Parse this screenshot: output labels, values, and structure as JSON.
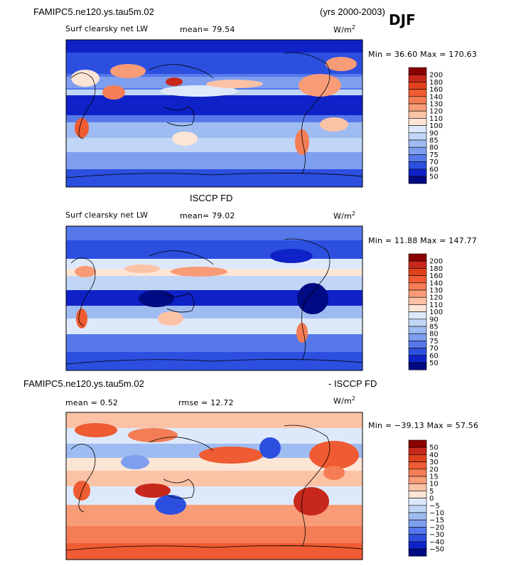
{
  "header": {
    "case_name": "FAMIPC5.ne120.ys.tau5m.02",
    "years": "(yrs 2000-2003)",
    "season": "DJF"
  },
  "units_superscript": "2",
  "panels": [
    {
      "field": "Surf clearsky net LW",
      "stat_line": "mean=  79.54",
      "units": "W/m",
      "minmax": "Min =  36.60 Max = 170.63",
      "colorbar_labels": [
        "200",
        "180",
        "160",
        "140",
        "130",
        "120",
        "110",
        "100",
        "90",
        "85",
        "80",
        "75",
        "70",
        "60",
        "50"
      ]
    },
    {
      "title": "ISCCP FD",
      "field": "Surf clearsky net LW",
      "stat_line": "mean=  79.02",
      "units": "W/m",
      "minmax": "Min =  11.88 Max = 147.77",
      "colorbar_labels": [
        "200",
        "180",
        "160",
        "140",
        "130",
        "120",
        "110",
        "100",
        "90",
        "85",
        "80",
        "75",
        "70",
        "60",
        "50"
      ]
    },
    {
      "title_left": "FAMIPC5.ne120.ys.tau5m.02",
      "title_right": "- ISCCP FD",
      "stat_mean": "mean =   0.52",
      "stat_rmse": "rmse =  12.72",
      "units": "W/m",
      "minmax": "Min = −39.13 Max =  57.56",
      "colorbar_labels": [
        "50",
        "40",
        "30",
        "20",
        "15",
        "10",
        "5",
        "0",
        "−5",
        "−10",
        "−15",
        "−20",
        "−30",
        "−40",
        "−50"
      ]
    }
  ],
  "colors": {
    "abs_scale": [
      "#8b0000",
      "#c8281c",
      "#e1421e",
      "#ef5b32",
      "#f47d55",
      "#f89c78",
      "#fcc2a6",
      "#fde5d5",
      "#dde9fb",
      "#c1d6f7",
      "#9fbcf2",
      "#7e9ff0",
      "#5678ea",
      "#2c4fe0",
      "#0f22c8",
      "#000a82"
    ],
    "diff_scale": [
      "#8b0000",
      "#c8281c",
      "#e1421e",
      "#ef5b32",
      "#f47d55",
      "#f89c78",
      "#fcc2a6",
      "#fde5d5",
      "#dde9fb",
      "#c1d6f7",
      "#9fbcf2",
      "#7e9ff0",
      "#5678ea",
      "#2c4fe0",
      "#0f22c8",
      "#000a82"
    ]
  },
  "chart_data": [
    {
      "type": "heatmap",
      "title": "Surf clearsky net LW",
      "units": "W/m2",
      "mean": 79.54,
      "min": 36.6,
      "max": 170.63,
      "levels": [
        50,
        60,
        70,
        75,
        80,
        85,
        90,
        100,
        110,
        120,
        130,
        140,
        160,
        180,
        200
      ]
    },
    {
      "type": "heatmap",
      "title": "ISCCP FD Surf clearsky net LW",
      "units": "W/m2",
      "mean": 79.02,
      "min": 11.88,
      "max": 147.77,
      "levels": [
        50,
        60,
        70,
        75,
        80,
        85,
        90,
        100,
        110,
        120,
        130,
        140,
        160,
        180,
        200
      ]
    },
    {
      "type": "heatmap",
      "title": "FAMIPC5.ne120.ys.tau5m.02 - ISCCP FD",
      "units": "W/m2",
      "mean": 0.52,
      "rmse": 12.72,
      "min": -39.13,
      "max": 57.56,
      "levels": [
        -50,
        -40,
        -30,
        -20,
        -15,
        -10,
        -5,
        0,
        5,
        10,
        15,
        20,
        30,
        40,
        50
      ]
    }
  ]
}
